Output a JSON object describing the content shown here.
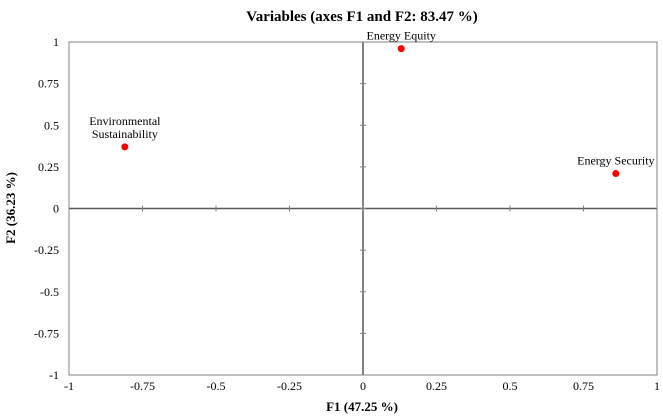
{
  "chart_data": {
    "type": "scatter",
    "title": "Variables (axes F1 and F2: 83.47 %)",
    "xlabel": "F1 (47.25 %)",
    "ylabel": "F2 (36.23 %)",
    "xlim": [
      -1,
      1
    ],
    "ylim": [
      -1,
      1
    ],
    "xticks": [
      -1,
      -0.75,
      -0.5,
      -0.25,
      0,
      0.25,
      0.5,
      0.75,
      1
    ],
    "yticks": [
      -1,
      -0.75,
      -0.5,
      -0.25,
      0,
      0.25,
      0.5,
      0.75,
      1
    ],
    "xtick_labels": [
      "-1",
      "-0.75",
      "-0.5",
      "-0.25",
      "0",
      "0.25",
      "0.5",
      "0.75",
      "1"
    ],
    "ytick_labels": [
      "-1",
      "-0.75",
      "-0.5",
      "-0.25",
      "0",
      "0.25",
      "0.5",
      "0.75",
      "1"
    ],
    "grid": false,
    "point_color": "#ff0000",
    "points": [
      {
        "label_lines": [
          "Energy Equity"
        ],
        "x": 0.13,
        "y": 0.96
      },
      {
        "label_lines": [
          "Environmental",
          "Sustainability"
        ],
        "x": -0.81,
        "y": 0.37
      },
      {
        "label_lines": [
          "Energy Security"
        ],
        "x": 0.86,
        "y": 0.21
      }
    ]
  }
}
